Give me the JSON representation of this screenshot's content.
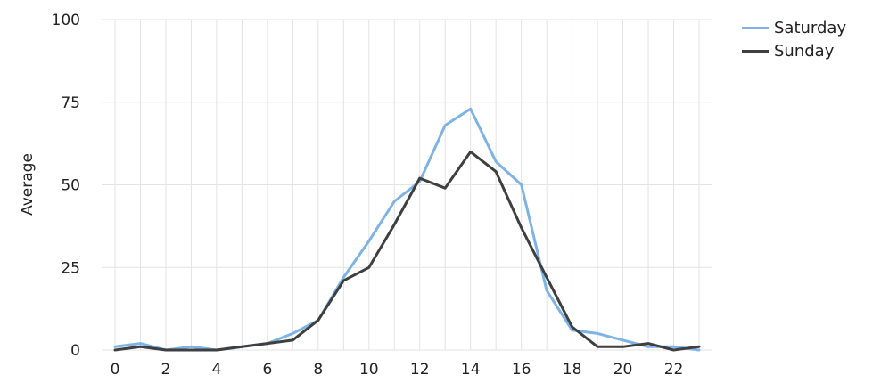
{
  "chart_data": {
    "type": "line",
    "title": "",
    "xlabel": "",
    "ylabel": "Average",
    "xlim": [
      0,
      23
    ],
    "ylim": [
      0,
      100
    ],
    "x_ticks": [
      "0",
      "2",
      "4",
      "6",
      "8",
      "10",
      "12",
      "14",
      "16",
      "18",
      "20",
      "22"
    ],
    "y_ticks": [
      "0",
      "25",
      "50",
      "75",
      "100"
    ],
    "grid": true,
    "legend_position": "top-right",
    "x": [
      0,
      1,
      2,
      3,
      4,
      5,
      6,
      7,
      8,
      9,
      10,
      11,
      12,
      13,
      14,
      15,
      16,
      17,
      18,
      19,
      20,
      21,
      22,
      23
    ],
    "series": [
      {
        "name": "Saturday",
        "color": "#7EB3E6",
        "values": [
          1,
          2,
          0,
          1,
          0,
          1,
          2,
          5,
          9,
          22,
          33,
          45,
          51,
          68,
          73,
          57,
          50,
          18,
          6,
          5,
          3,
          1,
          1,
          0
        ]
      },
      {
        "name": "Sunday",
        "color": "#3F3F3F",
        "values": [
          0,
          1,
          0,
          0,
          0,
          1,
          2,
          3,
          9,
          21,
          25,
          38,
          52,
          49,
          60,
          54,
          37,
          22,
          7,
          1,
          1,
          2,
          0,
          1
        ]
      }
    ]
  }
}
